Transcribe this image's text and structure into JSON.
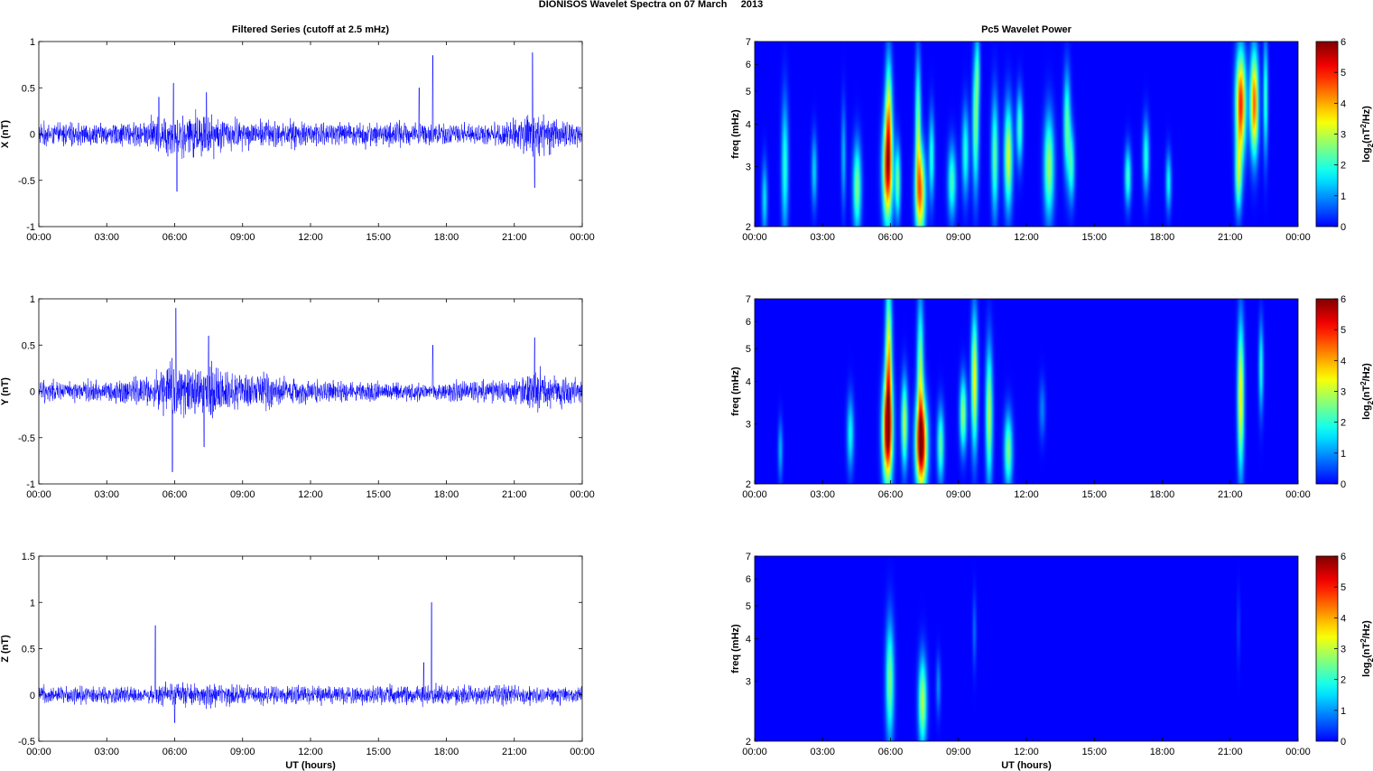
{
  "figure_title": "DIONISOS Wavelet Spectra on 07 March     2013",
  "left_column_title": "Filtered Series (cutoff at 2.5 mHz)",
  "right_column_title": "Pc5 Wavelet Power",
  "xlabel": "UT (hours)",
  "chart_data": [
    {
      "type": "line",
      "component": "X",
      "ylabel": "X (nT)",
      "xlim_hours": [
        0,
        24
      ],
      "x_ticks": [
        "00:00",
        "03:00",
        "06:00",
        "09:00",
        "12:00",
        "15:00",
        "18:00",
        "21:00",
        "00:00"
      ],
      "ylim": [
        -1,
        1
      ],
      "y_ticks": [
        -1,
        -0.5,
        0,
        0.5,
        1
      ],
      "y_tick_labels": [
        "-1",
        "-0.5",
        "0",
        "0.5",
        "1"
      ],
      "line_color": "#0000ff",
      "base_amplitude": 0.06,
      "envelope": [
        [
          0,
          0.1
        ],
        [
          1,
          0.12
        ],
        [
          3,
          0.1
        ],
        [
          4.5,
          0.15
        ],
        [
          5.5,
          0.3
        ],
        [
          6.2,
          0.35
        ],
        [
          7.3,
          0.35
        ],
        [
          8.5,
          0.2
        ],
        [
          10,
          0.18
        ],
        [
          12,
          0.14
        ],
        [
          14,
          0.15
        ],
        [
          16,
          0.14
        ],
        [
          18,
          0.1
        ],
        [
          20,
          0.08
        ],
        [
          21.5,
          0.3
        ],
        [
          22.3,
          0.35
        ],
        [
          23,
          0.15
        ],
        [
          24,
          0.1
        ]
      ],
      "peaks": [
        [
          5.95,
          0.55
        ],
        [
          6.1,
          -0.62
        ],
        [
          17.4,
          0.85
        ],
        [
          21.8,
          0.88
        ],
        [
          21.9,
          -0.58
        ],
        [
          16.8,
          0.5
        ],
        [
          5.3,
          0.4
        ],
        [
          7.4,
          0.45
        ]
      ]
    },
    {
      "type": "line",
      "component": "Y",
      "ylabel": "Y (nT)",
      "xlim_hours": [
        0,
        24
      ],
      "x_ticks": [
        "00:00",
        "03:00",
        "06:00",
        "09:00",
        "12:00",
        "15:00",
        "18:00",
        "21:00",
        "00:00"
      ],
      "ylim": [
        -1,
        1
      ],
      "y_ticks": [
        -1,
        -0.5,
        0,
        0.5,
        1
      ],
      "y_tick_labels": [
        "-1",
        "-0.5",
        "0",
        "0.5",
        "1"
      ],
      "line_color": "#0000ff",
      "base_amplitude": 0.06,
      "envelope": [
        [
          0,
          0.1
        ],
        [
          3,
          0.1
        ],
        [
          5,
          0.2
        ],
        [
          5.8,
          0.55
        ],
        [
          6.5,
          0.4
        ],
        [
          7.5,
          0.45
        ],
        [
          8.5,
          0.25
        ],
        [
          10,
          0.25
        ],
        [
          11,
          0.15
        ],
        [
          13,
          0.1
        ],
        [
          16,
          0.08
        ],
        [
          19,
          0.1
        ],
        [
          21.3,
          0.15
        ],
        [
          21.8,
          0.35
        ],
        [
          22.3,
          0.25
        ],
        [
          24,
          0.1
        ]
      ],
      "peaks": [
        [
          5.9,
          -0.87
        ],
        [
          6.05,
          0.9
        ],
        [
          7.5,
          0.6
        ],
        [
          17.4,
          0.5
        ],
        [
          21.9,
          0.58
        ],
        [
          7.3,
          -0.6
        ]
      ]
    },
    {
      "type": "line",
      "component": "Z",
      "ylabel": "Z (nT)",
      "xlim_hours": [
        0,
        24
      ],
      "x_ticks": [
        "00:00",
        "03:00",
        "06:00",
        "09:00",
        "12:00",
        "15:00",
        "18:00",
        "21:00",
        "00:00"
      ],
      "ylim": [
        -0.5,
        1.5
      ],
      "y_ticks": [
        -0.5,
        0,
        0.5,
        1,
        1.5
      ],
      "y_tick_labels": [
        "-0.5",
        "0",
        "0.5",
        "1",
        "1.5"
      ],
      "line_color": "#0000ff",
      "base_amplitude": 0.05,
      "envelope": [
        [
          0,
          0.08
        ],
        [
          5,
          0.08
        ],
        [
          6,
          0.15
        ],
        [
          7.5,
          0.15
        ],
        [
          9,
          0.1
        ],
        [
          15,
          0.08
        ],
        [
          17,
          0.12
        ],
        [
          18,
          0.1
        ],
        [
          21,
          0.1
        ],
        [
          24,
          0.08
        ]
      ],
      "peaks": [
        [
          5.15,
          0.75
        ],
        [
          17.35,
          1.0
        ],
        [
          17.0,
          0.35
        ],
        [
          6.0,
          -0.3
        ]
      ]
    },
    {
      "type": "heatmap",
      "component": "X",
      "ylabel": "freq (mHz)",
      "yscale": "log",
      "ylim_mhz": [
        2,
        7
      ],
      "y_ticks": [
        2,
        3,
        4,
        5,
        6,
        7
      ],
      "xlim_hours": [
        0,
        24
      ],
      "x_ticks": [
        "00:00",
        "03:00",
        "06:00",
        "09:00",
        "12:00",
        "15:00",
        "18:00",
        "21:00",
        "00:00"
      ],
      "colorbar_label": "log2(nT^2/Hz)",
      "colorbar_ticks": [
        0,
        1,
        2,
        3,
        4,
        5,
        6
      ],
      "clim": [
        0,
        6
      ],
      "blobs": [
        [
          0.4,
          2.4,
          0.12,
          0.25,
          1.6
        ],
        [
          1.3,
          3.0,
          0.15,
          0.45,
          2.0
        ],
        [
          2.6,
          2.9,
          0.12,
          0.25,
          1.5
        ],
        [
          3.9,
          3.2,
          0.1,
          0.35,
          1.3
        ],
        [
          4.5,
          2.6,
          0.18,
          0.3,
          2.6
        ],
        [
          5.85,
          2.9,
          0.22,
          0.35,
          4.8
        ],
        [
          5.9,
          4.3,
          0.15,
          0.4,
          3.0
        ],
        [
          6.3,
          2.7,
          0.12,
          0.25,
          2.5
        ],
        [
          7.3,
          2.5,
          0.22,
          0.3,
          4.2
        ],
        [
          7.2,
          4.0,
          0.12,
          0.45,
          2.6
        ],
        [
          7.8,
          3.2,
          0.12,
          0.3,
          2.0
        ],
        [
          8.7,
          2.7,
          0.18,
          0.25,
          2.2
        ],
        [
          9.3,
          3.3,
          0.15,
          0.3,
          2.0
        ],
        [
          9.75,
          4.0,
          0.14,
          0.45,
          2.6
        ],
        [
          10.6,
          3.2,
          0.15,
          0.4,
          2.4
        ],
        [
          11.2,
          3.2,
          0.18,
          0.35,
          3.2
        ],
        [
          11.7,
          3.9,
          0.14,
          0.25,
          2.2
        ],
        [
          13.0,
          3.0,
          0.22,
          0.35,
          2.8
        ],
        [
          13.8,
          4.0,
          0.15,
          0.35,
          2.4
        ],
        [
          14.0,
          3.0,
          0.14,
          0.25,
          2.0
        ],
        [
          16.5,
          2.8,
          0.14,
          0.2,
          2.2
        ],
        [
          17.3,
          3.2,
          0.14,
          0.25,
          2.0
        ],
        [
          18.3,
          2.7,
          0.12,
          0.2,
          1.8
        ],
        [
          21.4,
          2.8,
          0.15,
          0.25,
          2.6
        ],
        [
          21.5,
          4.6,
          0.22,
          0.35,
          5.0
        ],
        [
          22.1,
          4.6,
          0.18,
          0.35,
          4.6
        ],
        [
          22.6,
          4.8,
          0.1,
          0.4,
          2.2
        ],
        [
          9.85,
          5.8,
          0.1,
          0.25,
          1.5
        ]
      ]
    },
    {
      "type": "heatmap",
      "component": "Y",
      "ylabel": "freq (mHz)",
      "yscale": "log",
      "ylim_mhz": [
        2,
        7
      ],
      "y_ticks": [
        2,
        3,
        4,
        5,
        6,
        7
      ],
      "xlim_hours": [
        0,
        24
      ],
      "x_ticks": [
        "00:00",
        "03:00",
        "06:00",
        "09:00",
        "12:00",
        "15:00",
        "18:00",
        "21:00",
        "00:00"
      ],
      "colorbar_label": "log2(nT^2/Hz)",
      "colorbar_ticks": [
        0,
        1,
        2,
        3,
        4,
        5,
        6
      ],
      "clim": [
        0,
        6
      ],
      "blobs": [
        [
          1.1,
          2.5,
          0.1,
          0.2,
          1.3
        ],
        [
          4.2,
          2.8,
          0.15,
          0.25,
          1.8
        ],
        [
          5.85,
          2.85,
          0.22,
          0.35,
          5.7
        ],
        [
          5.9,
          4.7,
          0.14,
          0.5,
          3.6
        ],
        [
          6.6,
          3.0,
          0.14,
          0.3,
          3.0
        ],
        [
          7.35,
          2.6,
          0.25,
          0.3,
          5.8
        ],
        [
          7.3,
          4.2,
          0.14,
          0.5,
          2.8
        ],
        [
          8.2,
          2.6,
          0.15,
          0.25,
          2.4
        ],
        [
          9.2,
          3.2,
          0.15,
          0.25,
          2.8
        ],
        [
          9.7,
          4.0,
          0.14,
          0.45,
          3.5
        ],
        [
          10.35,
          3.2,
          0.15,
          0.45,
          3.0
        ],
        [
          11.2,
          2.5,
          0.18,
          0.25,
          2.6
        ],
        [
          21.5,
          3.6,
          0.14,
          0.5,
          3.6
        ],
        [
          22.4,
          4.4,
          0.1,
          0.3,
          2.0
        ],
        [
          12.7,
          3.3,
          0.14,
          0.2,
          0.9
        ]
      ]
    },
    {
      "type": "heatmap",
      "component": "Z",
      "ylabel": "freq (mHz)",
      "yscale": "log",
      "ylim_mhz": [
        2,
        7
      ],
      "y_ticks": [
        2,
        3,
        4,
        5,
        6,
        7
      ],
      "xlim_hours": [
        0,
        24
      ],
      "x_ticks": [
        "00:00",
        "03:00",
        "06:00",
        "09:00",
        "12:00",
        "15:00",
        "18:00",
        "21:00",
        "00:00"
      ],
      "colorbar_label": "log2(nT^2/Hz)",
      "colorbar_ticks": [
        0,
        1,
        2,
        3,
        4,
        5,
        6
      ],
      "clim": [
        0,
        6
      ],
      "blobs": [
        [
          5.95,
          3.0,
          0.18,
          0.4,
          2.6
        ],
        [
          7.4,
          2.6,
          0.18,
          0.3,
          3.0
        ],
        [
          8.1,
          2.9,
          0.1,
          0.2,
          1.0
        ],
        [
          9.7,
          4.2,
          0.08,
          0.25,
          0.8
        ],
        [
          21.4,
          4.3,
          0.06,
          0.25,
          0.5
        ]
      ]
    }
  ],
  "colors": {
    "jet_low": "#00008f",
    "line": "#0000ff",
    "axis": "#000000"
  }
}
